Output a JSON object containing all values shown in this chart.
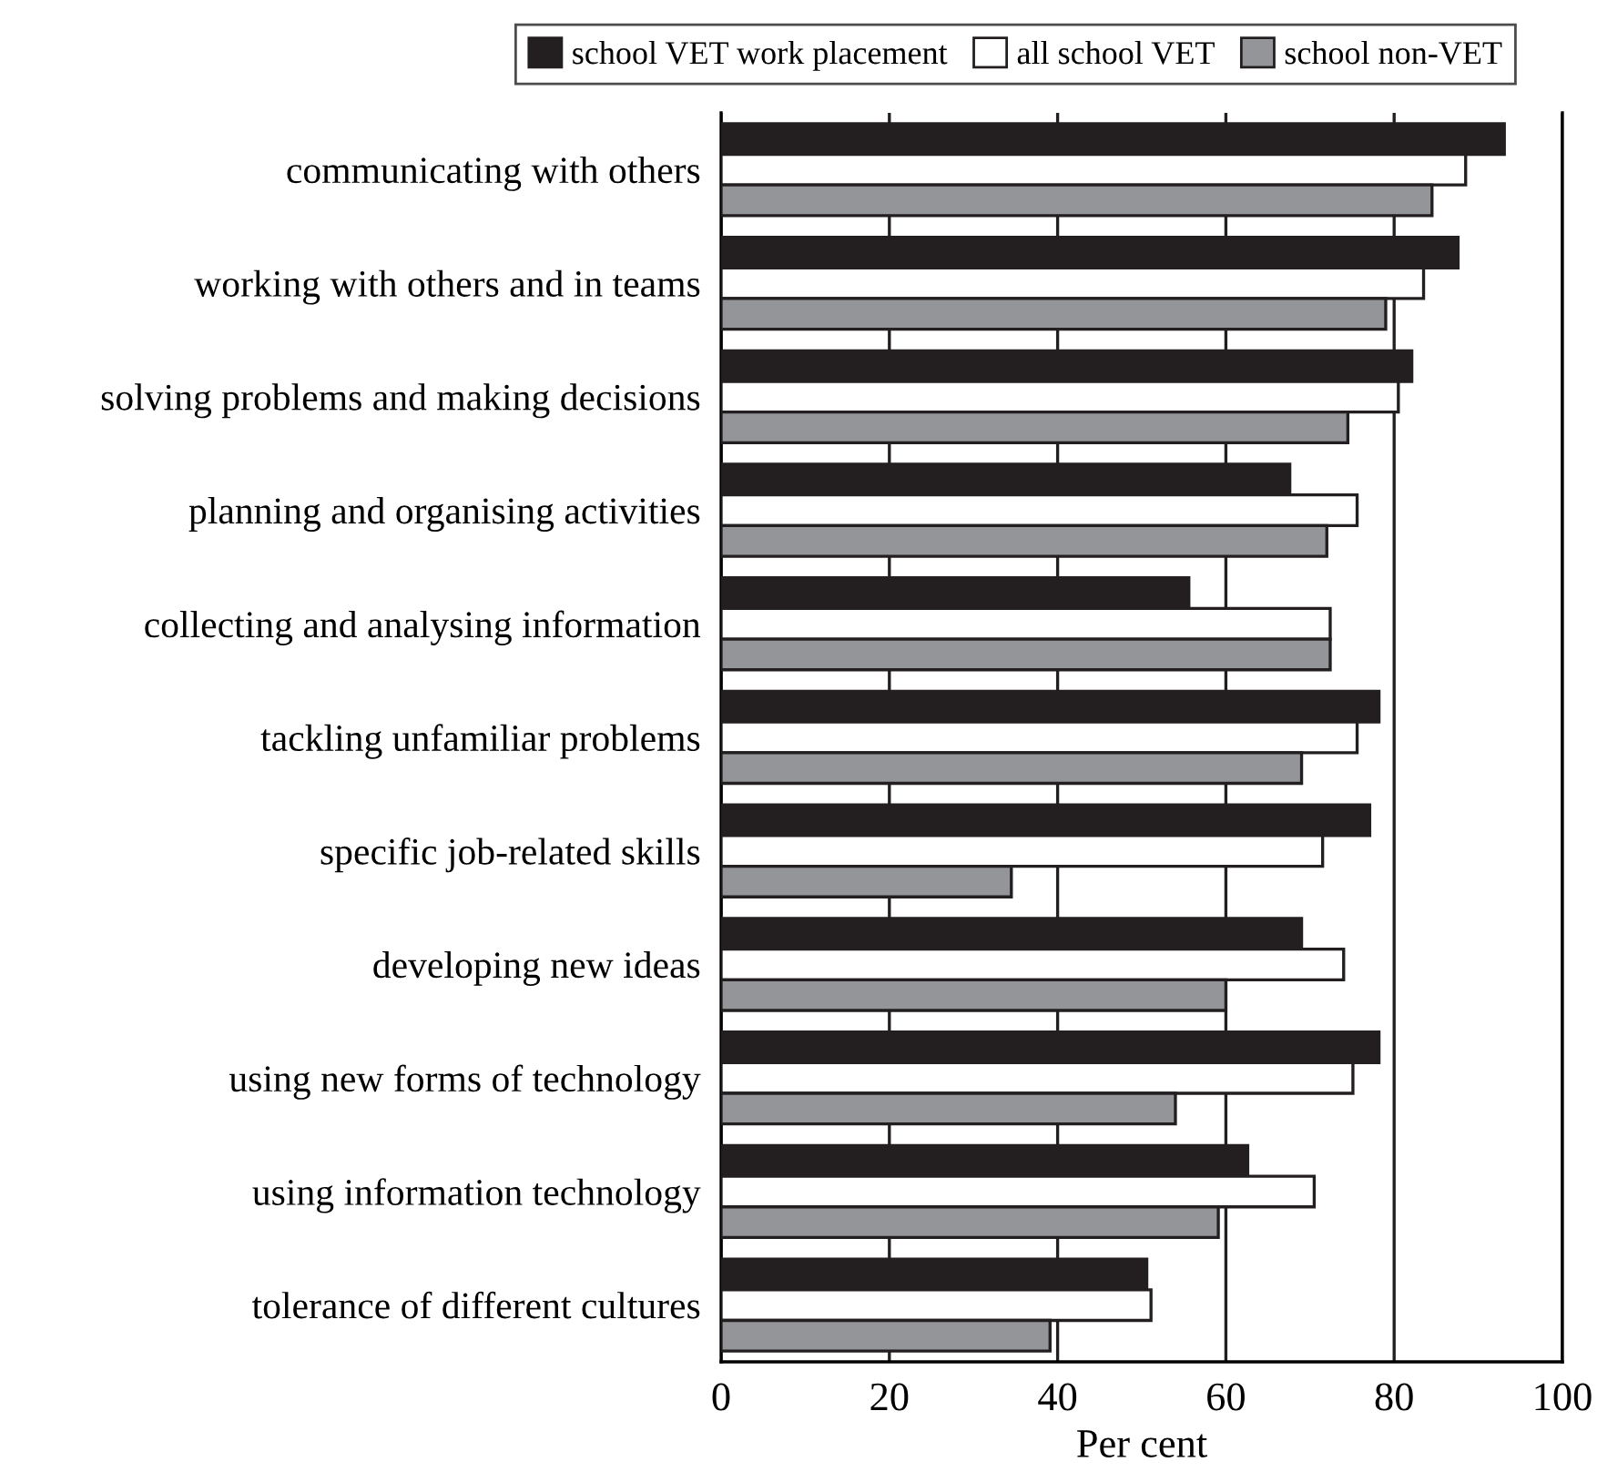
{
  "chart_data": {
    "type": "bar",
    "orientation": "horizontal",
    "xlabel": "Per cent",
    "categories": [
      "communicating with others",
      "working with others and in teams",
      "solving problems and making decisions",
      "planning and organising activities",
      "collecting and analysing information",
      "tackling unfamiliar problems",
      "specific job-related skills",
      "developing new ideas",
      "using new forms of technology",
      "using information technology",
      "tolerance of different cultures"
    ],
    "series": [
      {
        "name": "school VET work placement",
        "color": "#231f20",
        "values": [
          93.1,
          87.6,
          82.1,
          67.6,
          55.6,
          78.2,
          77.1,
          69.0,
          78.2,
          62.6,
          50.6
        ]
      },
      {
        "name": "all school VET",
        "color": "#ffffff",
        "values": [
          88.5,
          83.5,
          80.5,
          75.6,
          72.4,
          75.6,
          71.5,
          74.0,
          75.1,
          70.5,
          51.1
        ]
      },
      {
        "name": "school non-VET",
        "color": "#939598",
        "values": [
          84.5,
          79.0,
          74.5,
          72.0,
          72.4,
          69.0,
          34.5,
          60.0,
          54.0,
          59.1,
          39.1
        ]
      }
    ],
    "xlim": [
      0,
      100
    ],
    "xticks": [
      0,
      20,
      40,
      60,
      80,
      100
    ],
    "grid": "x",
    "legend": "top"
  }
}
